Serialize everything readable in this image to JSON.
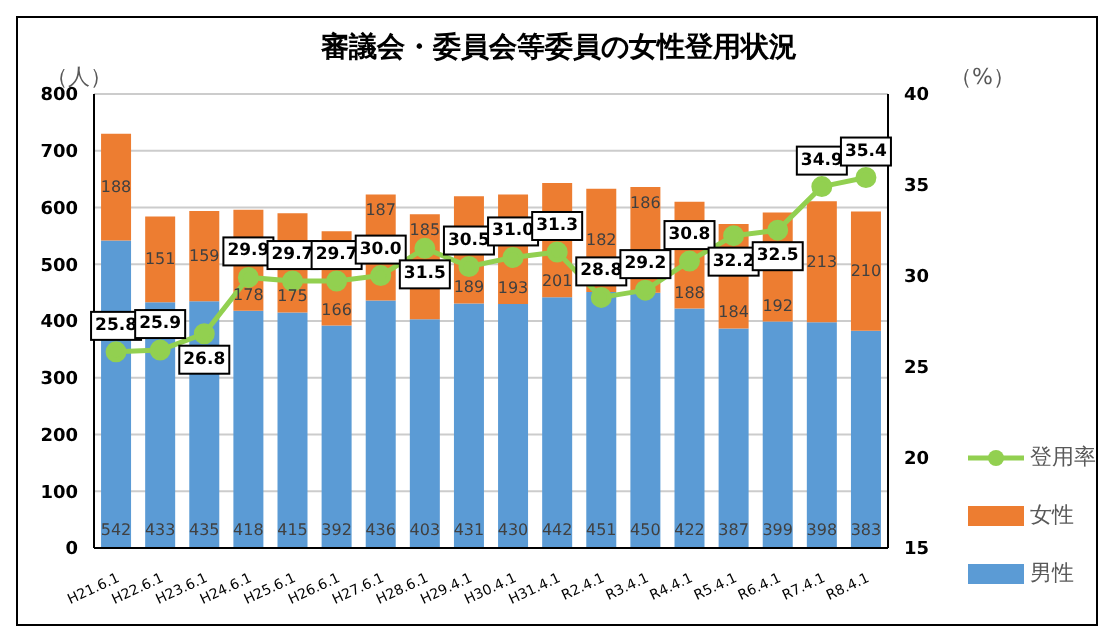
{
  "chart_data": {
    "type": "bar",
    "title": "審議会・委員会等委員の女性登用状況",
    "ylabel": "（人）",
    "y2label": "（%）",
    "categories": [
      "H21.6.1",
      "H22.6.1",
      "H23.6.1",
      "H24.6.1",
      "H25.6.1",
      "H26.6.1",
      "H27.6.1",
      "H28.6.1",
      "H29.4.1",
      "H30.4.1",
      "H31.4.1",
      "R2.4.1",
      "R3.4.1",
      "R4.4.1",
      "R5.4.1",
      "R6.4.1",
      "R7.4.1",
      "R8.4.1"
    ],
    "series": [
      {
        "name": "男性",
        "color": "#5b9bd5",
        "values": [
          542,
          433,
          435,
          418,
          415,
          392,
          436,
          403,
          431,
          430,
          442,
          451,
          450,
          422,
          387,
          399,
          398,
          383
        ]
      },
      {
        "name": "女性",
        "color": "#ed7d31",
        "values": [
          188,
          151,
          159,
          178,
          175,
          166,
          187,
          185,
          189,
          193,
          201,
          182,
          186,
          188,
          184,
          192,
          213,
          210
        ]
      },
      {
        "name": "登用率",
        "type": "line",
        "axis": "y2",
        "color": "#92d050",
        "values": [
          25.8,
          25.9,
          26.8,
          29.9,
          29.7,
          29.7,
          30.0,
          31.5,
          30.5,
          31.0,
          31.3,
          28.8,
          29.2,
          30.8,
          32.2,
          32.5,
          34.9,
          35.4
        ],
        "value_labels": [
          "25.8",
          "25.9",
          "26.8",
          "29.9",
          "29.7",
          "29.7",
          "30.0",
          "31.5",
          "30.5",
          "31.0",
          "31.3",
          "28.8",
          "29.2",
          "30.8",
          "32.2",
          "32.5",
          "34.9",
          "35.4"
        ]
      }
    ],
    "stacked": true,
    "data_labels": true,
    "marker": "circle",
    "ylim": [
      0,
      800
    ],
    "yticks": [
      0,
      100,
      200,
      300,
      400,
      500,
      600,
      700,
      800
    ],
    "y2lim": [
      15,
      40
    ],
    "y2ticks": [
      15,
      20,
      25,
      30,
      35,
      40
    ],
    "grid": "y",
    "legend": "bottom right"
  }
}
